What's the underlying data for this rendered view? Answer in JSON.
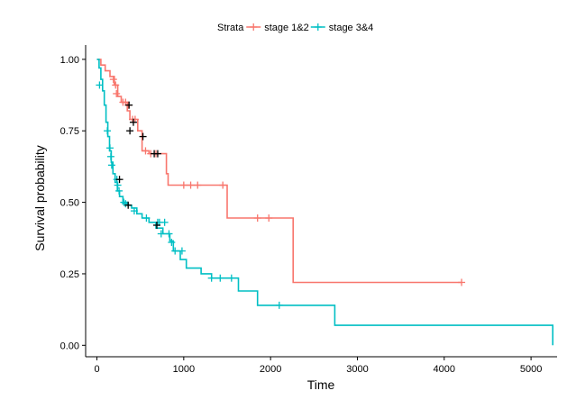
{
  "chart_data": {
    "type": "line",
    "title": "",
    "xlabel": "Time",
    "ylabel": "Survival probability",
    "xlim": [
      -130,
      5300
    ],
    "ylim": [
      -0.04,
      1.05
    ],
    "x_ticks": [
      0,
      1000,
      2000,
      3000,
      4000,
      5000
    ],
    "y_ticks": [
      0.0,
      0.25,
      0.5,
      0.75,
      1.0
    ],
    "x_tick_labels": [
      "0",
      "1000",
      "2000",
      "3000",
      "4000",
      "5000"
    ],
    "y_tick_labels": [
      "0.00",
      "0.25",
      "0.50",
      "0.75",
      "1.00"
    ],
    "grid": false,
    "legend_position": "top",
    "legend": {
      "title": "Strata"
    },
    "series": [
      {
        "name": "stage 1&2",
        "color": "#F8766D",
        "steps": [
          [
            0,
            1.0
          ],
          [
            45,
            0.98
          ],
          [
            95,
            0.96
          ],
          [
            150,
            0.94
          ],
          [
            200,
            0.91
          ],
          [
            240,
            0.87
          ],
          [
            280,
            0.85
          ],
          [
            350,
            0.82
          ],
          [
            380,
            0.79
          ],
          [
            420,
            0.79
          ],
          [
            470,
            0.75
          ],
          [
            520,
            0.68
          ],
          [
            600,
            0.67
          ],
          [
            800,
            0.6
          ],
          [
            820,
            0.56
          ],
          [
            1480,
            0.56
          ],
          [
            1500,
            0.445
          ],
          [
            2250,
            0.445
          ],
          [
            2260,
            0.22
          ],
          [
            4200,
            0.22
          ]
        ],
        "censored": [
          [
            190,
            0.93
          ],
          [
            215,
            0.91
          ],
          [
            225,
            0.88
          ],
          [
            300,
            0.85
          ],
          [
            330,
            0.85
          ],
          [
            360,
            0.84
          ],
          [
            410,
            0.79
          ],
          [
            440,
            0.79
          ],
          [
            560,
            0.68
          ],
          [
            620,
            0.67
          ],
          [
            680,
            0.67
          ],
          [
            1000,
            0.56
          ],
          [
            1080,
            0.56
          ],
          [
            1160,
            0.56
          ],
          [
            1450,
            0.56
          ],
          [
            1850,
            0.445
          ],
          [
            1980,
            0.445
          ],
          [
            4200,
            0.22
          ]
        ]
      },
      {
        "name": "stage 3&4",
        "color": "#00BFC4",
        "steps": [
          [
            0,
            1.0
          ],
          [
            25,
            0.97
          ],
          [
            45,
            0.93
          ],
          [
            65,
            0.89
          ],
          [
            85,
            0.84
          ],
          [
            105,
            0.78
          ],
          [
            125,
            0.73
          ],
          [
            145,
            0.68
          ],
          [
            165,
            0.64
          ],
          [
            185,
            0.6
          ],
          [
            210,
            0.57
          ],
          [
            235,
            0.54
          ],
          [
            260,
            0.52
          ],
          [
            300,
            0.5
          ],
          [
            350,
            0.49
          ],
          [
            400,
            0.48
          ],
          [
            460,
            0.46
          ],
          [
            520,
            0.445
          ],
          [
            600,
            0.43
          ],
          [
            680,
            0.41
          ],
          [
            760,
            0.39
          ],
          [
            840,
            0.365
          ],
          [
            880,
            0.33
          ],
          [
            960,
            0.3
          ],
          [
            1030,
            0.27
          ],
          [
            1200,
            0.25
          ],
          [
            1320,
            0.235
          ],
          [
            1630,
            0.19
          ],
          [
            1850,
            0.14
          ],
          [
            2740,
            0.07
          ],
          [
            5250,
            0.07
          ],
          [
            5250,
            0.0
          ]
        ],
        "censored": [
          [
            30,
            0.91
          ],
          [
            120,
            0.75
          ],
          [
            150,
            0.69
          ],
          [
            160,
            0.66
          ],
          [
            170,
            0.63
          ],
          [
            230,
            0.58
          ],
          [
            240,
            0.56
          ],
          [
            255,
            0.54
          ],
          [
            310,
            0.5
          ],
          [
            330,
            0.495
          ],
          [
            430,
            0.47
          ],
          [
            570,
            0.445
          ],
          [
            700,
            0.43
          ],
          [
            720,
            0.43
          ],
          [
            780,
            0.43
          ],
          [
            740,
            0.39
          ],
          [
            830,
            0.39
          ],
          [
            860,
            0.36
          ],
          [
            900,
            0.33
          ],
          [
            980,
            0.33
          ],
          [
            1320,
            0.235
          ],
          [
            1420,
            0.235
          ],
          [
            1550,
            0.235
          ],
          [
            2100,
            0.14
          ]
        ]
      }
    ],
    "risk_marks_black": [
      [
        370,
        0.84
      ],
      [
        380,
        0.75
      ],
      [
        420,
        0.78
      ],
      [
        530,
        0.73
      ],
      [
        660,
        0.67
      ],
      [
        700,
        0.67
      ],
      [
        260,
        0.58
      ],
      [
        360,
        0.49
      ],
      [
        690,
        0.42
      ]
    ]
  }
}
